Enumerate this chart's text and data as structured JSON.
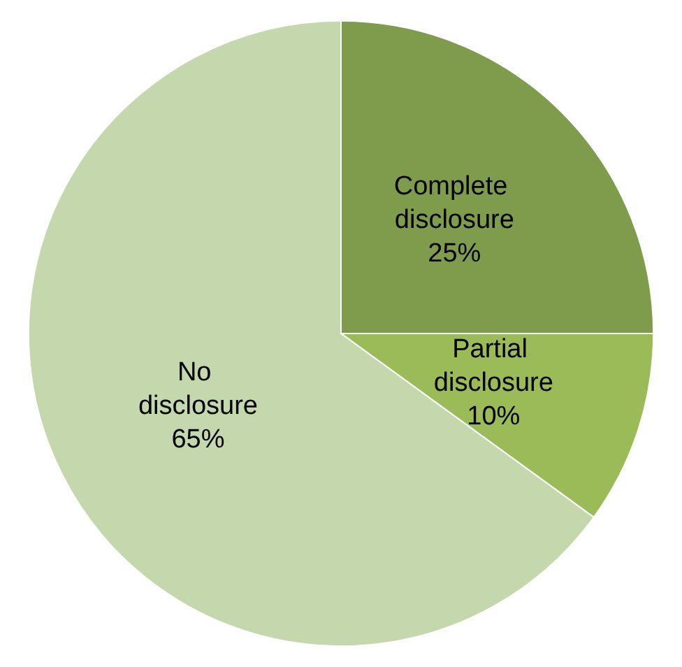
{
  "chart_data": {
    "type": "pie",
    "categories": [
      "Complete disclosure",
      "Partial disclosure",
      "No disclosure"
    ],
    "values": [
      25,
      10,
      65
    ],
    "colors": [
      "#7f9c4c",
      "#9bbb59",
      "#c5d7ac"
    ],
    "value_labels": [
      "25%",
      "10%",
      "65%"
    ],
    "legend": false
  }
}
